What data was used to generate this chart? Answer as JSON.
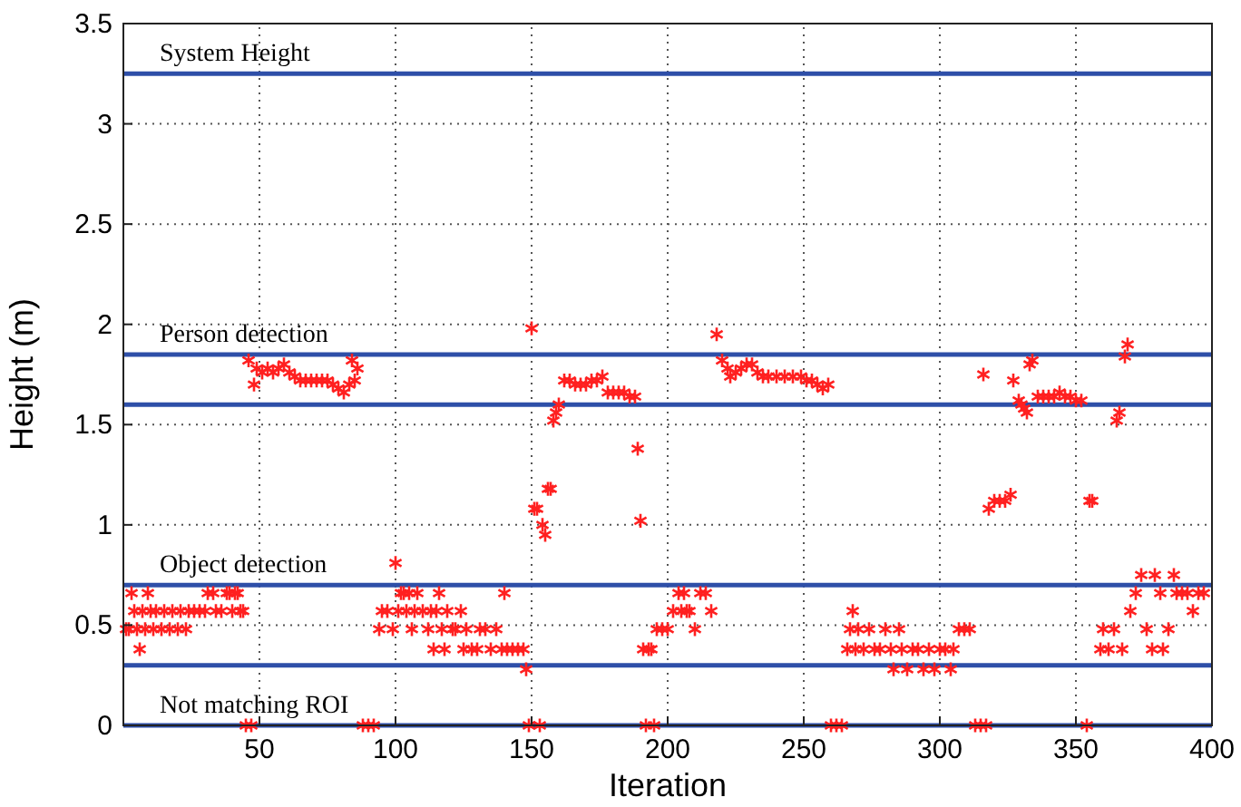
{
  "chart_data": {
    "type": "scatter",
    "xlabel": "Iteration",
    "ylabel": "Height (m)",
    "xlim": [
      0,
      400
    ],
    "xticks": [
      50,
      100,
      150,
      200,
      250,
      300,
      350,
      400
    ],
    "ylim": [
      0,
      3.5
    ],
    "yticks": [
      0,
      0.5,
      1,
      1.5,
      2,
      2.5,
      3,
      3.5
    ],
    "grid": true,
    "marker": "cross",
    "series": [
      {
        "color": "#ff2020",
        "x": [
          1,
          2,
          3,
          4,
          5,
          6,
          7,
          8,
          9,
          10,
          11,
          12,
          14,
          15,
          17,
          18,
          20,
          21,
          23,
          24,
          26,
          28,
          30,
          31,
          33,
          34,
          36,
          38,
          39,
          40,
          41,
          42,
          43,
          44,
          45,
          47,
          46,
          48,
          49,
          51,
          53,
          55,
          57,
          59,
          61,
          63,
          65,
          67,
          69,
          71,
          73,
          75,
          77,
          79,
          81,
          83,
          84,
          86,
          85,
          88,
          90,
          92,
          94,
          95,
          97,
          99,
          100,
          101,
          102,
          103,
          104,
          105,
          106,
          107,
          108,
          110,
          112,
          113,
          114,
          115,
          116,
          117,
          118,
          119,
          121,
          122,
          124,
          125,
          126,
          128,
          130,
          131,
          133,
          135,
          137,
          139,
          140,
          141,
          143,
          145,
          147,
          148,
          149,
          150,
          153,
          151,
          152,
          154,
          155,
          156,
          157,
          158,
          159,
          160,
          162,
          164,
          166,
          168,
          170,
          172,
          174,
          176,
          178,
          180,
          182,
          184,
          186,
          188,
          189,
          190,
          191,
          193,
          194,
          192,
          195,
          196,
          198,
          200,
          202,
          204,
          205,
          206,
          207,
          208,
          210,
          212,
          214,
          216,
          218,
          220,
          222,
          223,
          225,
          227,
          229,
          231,
          233,
          235,
          237,
          240,
          243,
          246,
          249,
          251,
          253,
          255,
          257,
          259,
          260,
          262,
          264,
          266,
          267,
          268,
          269,
          270,
          272,
          274,
          276,
          278,
          280,
          282,
          283,
          285,
          286,
          288,
          290,
          292,
          294,
          296,
          298,
          300,
          302,
          304,
          305,
          307,
          309,
          311,
          313,
          315,
          317,
          316,
          318,
          320,
          322,
          324,
          326,
          327,
          329,
          330,
          331,
          332,
          333,
          334,
          336,
          338,
          340,
          342,
          344,
          346,
          348,
          350,
          352,
          354,
          355,
          356,
          359,
          360,
          362,
          364,
          365,
          366,
          367,
          368,
          369,
          370,
          372,
          374,
          376,
          378,
          379,
          381,
          382,
          384,
          386,
          387,
          389,
          391,
          393,
          395,
          397
        ],
        "values": [
          0.48,
          0.48,
          0.66,
          0.57,
          0.48,
          0.38,
          0.57,
          0.48,
          0.66,
          0.57,
          0.48,
          0.57,
          0.48,
          0.57,
          0.48,
          0.57,
          0.48,
          0.57,
          0.48,
          0.57,
          0.57,
          0.57,
          0.57,
          0.66,
          0.66,
          0.57,
          0.57,
          0.66,
          0.66,
          0.57,
          0.66,
          0.66,
          0.57,
          0.57,
          0,
          0,
          1.82,
          1.7,
          1.78,
          1.76,
          1.78,
          1.76,
          1.78,
          1.8,
          1.76,
          1.74,
          1.72,
          1.72,
          1.72,
          1.72,
          1.72,
          1.72,
          1.7,
          1.68,
          1.66,
          1.7,
          1.82,
          1.78,
          1.72,
          0,
          0,
          0,
          0.48,
          0.57,
          0.57,
          0.48,
          0.81,
          0.57,
          0.66,
          0.66,
          0.57,
          0.66,
          0.48,
          0.57,
          0.66,
          0.57,
          0.48,
          0.57,
          0.38,
          0.57,
          0.66,
          0.48,
          0.38,
          0.57,
          0.48,
          0.48,
          0.57,
          0.38,
          0.48,
          0.38,
          0.38,
          0.48,
          0.48,
          0.38,
          0.48,
          0.38,
          0.66,
          0.38,
          0.38,
          0.38,
          0.38,
          0.28,
          0,
          1.98,
          0,
          1.08,
          1.08,
          1.0,
          0.95,
          1.18,
          1.18,
          1.52,
          1.56,
          1.6,
          1.72,
          1.72,
          1.7,
          1.7,
          1.7,
          1.72,
          1.72,
          1.74,
          1.66,
          1.66,
          1.66,
          1.66,
          1.64,
          1.64,
          1.38,
          1.02,
          0.38,
          0.38,
          0.38,
          0,
          0,
          0.48,
          0.48,
          0.48,
          0.57,
          0.66,
          0.57,
          0.66,
          0.57,
          0.57,
          0.48,
          0.66,
          0.66,
          0.57,
          1.95,
          1.82,
          1.78,
          1.74,
          1.76,
          1.78,
          1.8,
          1.8,
          1.76,
          1.74,
          1.74,
          1.74,
          1.74,
          1.74,
          1.74,
          1.72,
          1.72,
          1.7,
          1.68,
          1.7,
          0,
          0,
          0,
          0.38,
          0.48,
          0.57,
          0.38,
          0.48,
          0.38,
          0.48,
          0.38,
          0.38,
          0.48,
          0.38,
          0.28,
          0.48,
          0.38,
          0.28,
          0.38,
          0.38,
          0.28,
          0.38,
          0.28,
          0.38,
          0.38,
          0.28,
          0.38,
          0.48,
          0.48,
          0.48,
          0,
          0,
          0,
          1.75,
          1.08,
          1.12,
          1.12,
          1.12,
          1.15,
          1.72,
          1.62,
          1.6,
          1.58,
          1.56,
          1.8,
          1.82,
          1.64,
          1.64,
          1.64,
          1.64,
          1.66,
          1.64,
          1.64,
          1.62,
          1.62,
          0,
          1.12,
          1.12,
          0.38,
          0.48,
          0.38,
          0.48,
          1.52,
          1.56,
          0.38,
          1.84,
          1.9,
          0.57,
          0.66,
          0.75,
          0.48,
          0.38,
          0.75,
          0.66,
          0.38,
          0.48,
          0.75,
          0.66,
          0.66,
          0.66,
          0.57,
          0.66,
          0.66
        ]
      }
    ],
    "ref_lines": [
      {
        "axis": "y",
        "value": 3.25,
        "color": "#2e4fa8",
        "label": "System Height"
      },
      {
        "axis": "y",
        "value": 1.85,
        "color": "#2e4fa8",
        "label": "Person detection"
      },
      {
        "axis": "y",
        "value": 1.6,
        "color": "#2e4fa8"
      },
      {
        "axis": "y",
        "value": 0.7,
        "color": "#2e4fa8",
        "label": "Object detection"
      },
      {
        "axis": "y",
        "value": 0.3,
        "color": "#2e4fa8"
      },
      {
        "axis": "y",
        "value": 0,
        "color": "#2e4fa8",
        "label": "Not matching ROI"
      }
    ]
  }
}
